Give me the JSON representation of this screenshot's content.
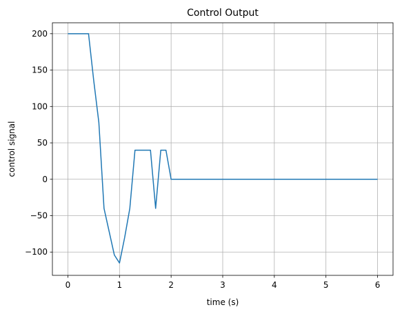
{
  "chart_data": {
    "type": "line",
    "title": "Control Output",
    "xlabel": "time (s)",
    "ylabel": "control signal",
    "xlim": [
      -0.3,
      6.3
    ],
    "ylim": [
      -132,
      215
    ],
    "grid": true,
    "legend": null,
    "x_ticks": [
      0,
      1,
      2,
      3,
      4,
      5,
      6
    ],
    "x_tick_labels": [
      "0",
      "1",
      "2",
      "3",
      "4",
      "5",
      "6"
    ],
    "y_ticks": [
      200,
      150,
      100,
      50,
      0,
      -50,
      -100
    ],
    "y_tick_labels": [
      "200",
      "150",
      "100",
      "50",
      "0",
      "−50",
      "−100"
    ],
    "series": [
      {
        "color": "#1f77b4",
        "x": [
          0,
          0.1,
          0.2,
          0.3,
          0.4,
          0.5,
          0.6,
          0.7,
          0.8,
          0.9,
          1.0,
          1.1,
          1.2,
          1.3,
          1.4,
          1.5,
          1.6,
          1.7,
          1.8,
          1.9,
          2.0,
          2.1,
          3.0,
          4.0,
          5.0,
          6.0
        ],
        "y": [
          200,
          200,
          200,
          200,
          200,
          136,
          78,
          -40,
          -72,
          -104,
          -115,
          -80,
          -40,
          40,
          40,
          40,
          40,
          -40,
          40,
          40,
          0,
          0,
          0,
          0,
          0,
          0
        ]
      }
    ]
  }
}
